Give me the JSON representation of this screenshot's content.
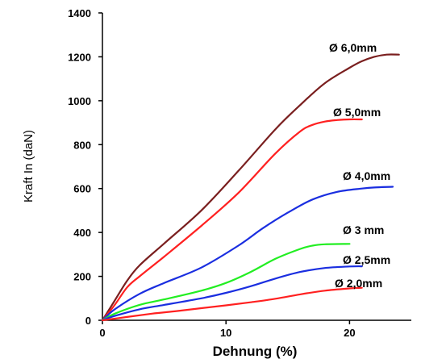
{
  "chart_data": {
    "type": "line",
    "title": "",
    "xlabel": "Dehnung (%)",
    "ylabel": "Kraft In (daN)",
    "xlim": [
      0,
      25
    ],
    "ylim": [
      0,
      1400
    ],
    "x_ticks": [
      0,
      10,
      20
    ],
    "y_ticks": [
      0,
      200,
      400,
      600,
      800,
      1000,
      1200,
      1400
    ],
    "grid": false,
    "colors": {
      "6.0": "#7a1f1f",
      "5.0": "#ff2020",
      "4.0": "#1a2ee0",
      "3": "#22ee22",
      "2.5": "#1a2ee0",
      "2.0": "#ff2020"
    },
    "series": [
      {
        "name": "Ø 6,0mm",
        "color": "#7a1f1f",
        "x": [
          0,
          1,
          2,
          3,
          5,
          8,
          11,
          14,
          16,
          18,
          20,
          21,
          22,
          23,
          24
        ],
        "y": [
          0,
          90,
          180,
          250,
          350,
          500,
          680,
          870,
          980,
          1080,
          1150,
          1180,
          1200,
          1210,
          1210
        ]
      },
      {
        "name": "Ø 5,0mm",
        "color": "#ff2020",
        "x": [
          0,
          1,
          2,
          3,
          5,
          8,
          11,
          14,
          16,
          17,
          18,
          19,
          20,
          21
        ],
        "y": [
          0,
          70,
          150,
          200,
          290,
          430,
          580,
          760,
          860,
          890,
          905,
          912,
          915,
          915
        ]
      },
      {
        "name": "Ø 4,0mm",
        "color": "#1a2ee0",
        "x": [
          0,
          1,
          3,
          5,
          8,
          11,
          13,
          15,
          17,
          19,
          21,
          22,
          23.5
        ],
        "y": [
          0,
          50,
          120,
          170,
          240,
          340,
          420,
          490,
          550,
          585,
          600,
          605,
          608
        ]
      },
      {
        "name": "Ø 3 mm",
        "color": "#22ee22",
        "x": [
          0,
          1,
          3,
          5,
          8,
          10,
          12,
          14,
          16,
          17,
          18,
          20
        ],
        "y": [
          0,
          30,
          70,
          95,
          135,
          170,
          220,
          280,
          325,
          340,
          346,
          348
        ]
      },
      {
        "name": "Ø 2,5mm",
        "color": "#1a2ee0",
        "x": [
          0,
          1,
          3,
          5,
          8,
          10,
          12,
          14,
          16,
          18,
          20,
          21
        ],
        "y": [
          0,
          20,
          50,
          70,
          100,
          125,
          155,
          190,
          220,
          238,
          245,
          246
        ]
      },
      {
        "name": "Ø 2,0mm",
        "color": "#ff2020",
        "x": [
          0,
          2,
          4,
          6,
          8,
          10,
          12,
          14,
          16,
          18,
          20,
          21
        ],
        "y": [
          0,
          15,
          30,
          42,
          55,
          68,
          82,
          98,
          118,
          135,
          145,
          148
        ]
      }
    ],
    "labels": [
      "Ø 6,0mm",
      "Ø 5,0mm",
      "Ø 4,0mm",
      "Ø 3 mm",
      "Ø 2,5mm",
      "Ø 2,0mm"
    ]
  }
}
